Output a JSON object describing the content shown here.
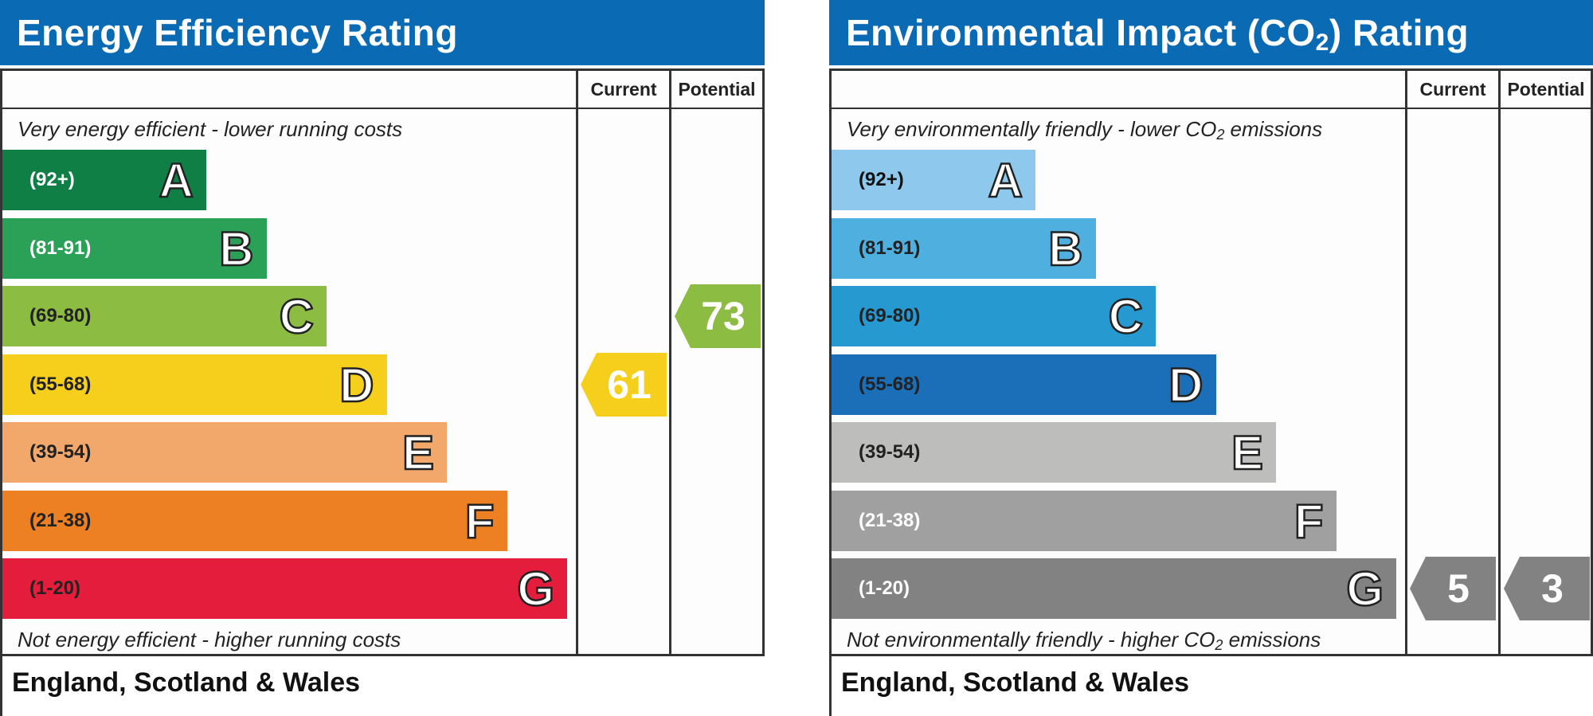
{
  "chart_data": [
    {
      "type": "bar",
      "title": "Energy Efficiency Rating",
      "columns": [
        "Current",
        "Potential"
      ],
      "top_caption": "Very energy efficient - lower running costs",
      "bottom_caption": "Not energy efficient - higher running costs",
      "footer": "England, Scotland & Wales",
      "bands": [
        {
          "letter": "A",
          "range": "(92+)",
          "min": 92,
          "max": 100,
          "color": "#0f7f46",
          "text_color": "#ffffff"
        },
        {
          "letter": "B",
          "range": "(81-91)",
          "min": 81,
          "max": 91,
          "color": "#2aa156",
          "text_color": "#ffffff"
        },
        {
          "letter": "C",
          "range": "(69-80)",
          "min": 69,
          "max": 80,
          "color": "#8cbc42",
          "text_color": "#222222"
        },
        {
          "letter": "D",
          "range": "(55-68)",
          "min": 55,
          "max": 68,
          "color": "#f6cf1c",
          "text_color": "#222222"
        },
        {
          "letter": "E",
          "range": "(39-54)",
          "min": 39,
          "max": 54,
          "color": "#f2a86b",
          "text_color": "#222222"
        },
        {
          "letter": "F",
          "range": "(21-38)",
          "min": 21,
          "max": 38,
          "color": "#ed8023",
          "text_color": "#222222"
        },
        {
          "letter": "G",
          "range": "(1-20)",
          "min": 1,
          "max": 20,
          "color": "#e31d3b",
          "text_color": "#222222"
        }
      ],
      "current": {
        "value": 61,
        "band": "D",
        "color": "#f6cf1c"
      },
      "potential": {
        "value": 73,
        "band": "C",
        "color": "#8cbc42"
      }
    },
    {
      "type": "bar",
      "title": "Environmental Impact (CO",
      "title_sub": "2",
      "title_end": ") Rating",
      "columns": [
        "Current",
        "Potential"
      ],
      "top_caption": "Very environmentally friendly - lower CO",
      "top_caption_sub": "2",
      "top_caption_end": " emissions",
      "bottom_caption": "Not environmentally friendly - higher CO",
      "bottom_caption_sub": "2",
      "bottom_caption_end": " emissions",
      "footer": "England, Scotland & Wales",
      "bands": [
        {
          "letter": "A",
          "range": "(92+)",
          "min": 92,
          "max": 100,
          "color": "#8ec8ec",
          "text_color": "#111111"
        },
        {
          "letter": "B",
          "range": "(81-91)",
          "min": 81,
          "max": 91,
          "color": "#4fb0e0",
          "text_color": "#222222"
        },
        {
          "letter": "C",
          "range": "(69-80)",
          "min": 69,
          "max": 80,
          "color": "#2799d1",
          "text_color": "#222222"
        },
        {
          "letter": "D",
          "range": "(55-68)",
          "min": 55,
          "max": 68,
          "color": "#1a6fb8",
          "text_color": "#222222"
        },
        {
          "letter": "E",
          "range": "(39-54)",
          "min": 39,
          "max": 54,
          "color": "#bdbdbb",
          "text_color": "#222222"
        },
        {
          "letter": "F",
          "range": "(21-38)",
          "min": 21,
          "max": 38,
          "color": "#a0a0a0",
          "text_color": "#ffffff"
        },
        {
          "letter": "G",
          "range": "(1-20)",
          "min": 1,
          "max": 20,
          "color": "#828282",
          "text_color": "#ffffff"
        }
      ],
      "current": {
        "value": 5,
        "band": "G",
        "color": "#828282"
      },
      "potential": {
        "value": 3,
        "band": "G",
        "color": "#828282"
      }
    }
  ]
}
